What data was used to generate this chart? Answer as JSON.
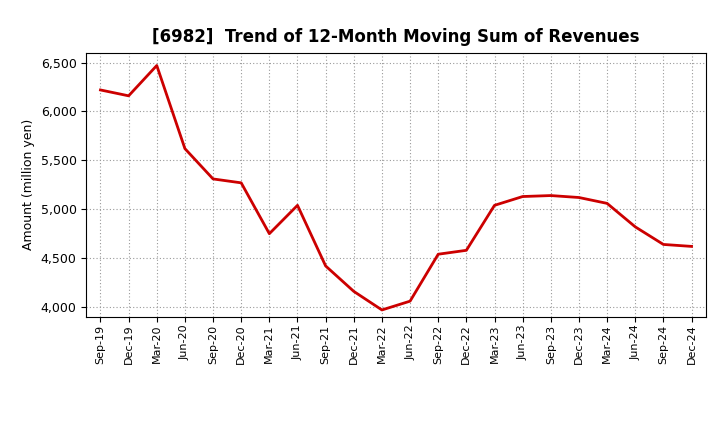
{
  "title": "[6982]  Trend of 12-Month Moving Sum of Revenues",
  "ylabel": "Amount (million yen)",
  "line_color": "#cc0000",
  "background_color": "#ffffff",
  "grid_color": "#999999",
  "ylim": [
    3900,
    6600
  ],
  "yticks": [
    4000,
    4500,
    5000,
    5500,
    6000,
    6500
  ],
  "x_labels": [
    "Sep-19",
    "Dec-19",
    "Mar-20",
    "Jun-20",
    "Sep-20",
    "Dec-20",
    "Mar-21",
    "Jun-21",
    "Sep-21",
    "Dec-21",
    "Mar-22",
    "Jun-22",
    "Sep-22",
    "Dec-22",
    "Mar-23",
    "Jun-23",
    "Sep-23",
    "Dec-23",
    "Mar-24",
    "Jun-24",
    "Sep-24",
    "Dec-24"
  ],
  "y_values": [
    6220,
    6160,
    6470,
    5620,
    5310,
    5270,
    4750,
    5040,
    4420,
    4160,
    3970,
    4060,
    4540,
    4580,
    5040,
    5130,
    5140,
    5120,
    5060,
    4820,
    4640,
    4620
  ],
  "title_fontsize": 12,
  "ylabel_fontsize": 9,
  "tick_fontsize": 9,
  "xtick_fontsize": 8
}
